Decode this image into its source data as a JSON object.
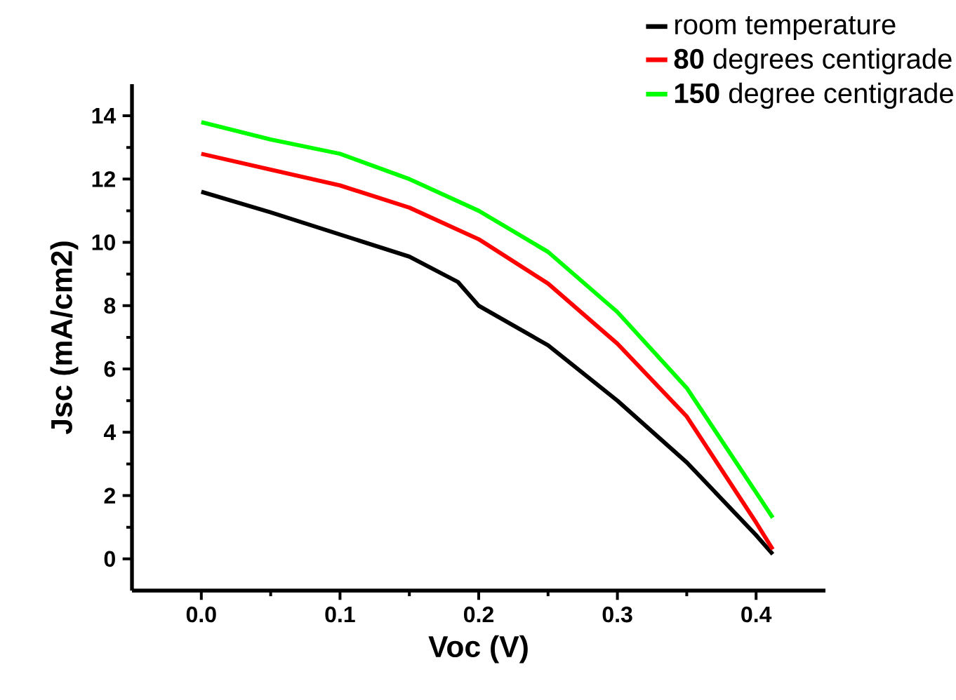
{
  "chart_data": {
    "type": "line",
    "xlabel": "Voc (V)",
    "ylabel": "Jsc (mA/cm2)",
    "xlim": [
      -0.05,
      0.45
    ],
    "ylim": [
      -1,
      15
    ],
    "xticks": [
      {
        "value": 0,
        "label": "0.0"
      },
      0.1,
      0.2,
      0.3,
      0.4
    ],
    "yticks": [
      0,
      2,
      4,
      6,
      8,
      10,
      12,
      14
    ],
    "grid": false,
    "legend": "top right",
    "marker": "none",
    "line_style": "solid",
    "series": [
      {
        "name": "room temperature",
        "color": "#000000",
        "x": [
          0,
          0.05,
          0.1,
          0.15,
          0.185,
          0.2,
          0.25,
          0.3,
          0.35,
          0.4,
          0.412
        ],
        "values": [
          11.6,
          10.95,
          10.25,
          9.55,
          8.75,
          8.0,
          6.75,
          5.0,
          3.05,
          0.75,
          0.15
        ]
      },
      {
        "name": "**80** degrees centigrade",
        "color": "#ff0000",
        "x": [
          0,
          0.05,
          0.1,
          0.15,
          0.2,
          0.25,
          0.3,
          0.35,
          0.4,
          0.412
        ],
        "values": [
          12.8,
          12.3,
          11.8,
          11.1,
          10.1,
          8.7,
          6.8,
          4.5,
          1.15,
          0.3
        ]
      },
      {
        "name": "**150** degree centigrade",
        "color": "#00ff00",
        "x": [
          0,
          0.05,
          0.1,
          0.15,
          0.2,
          0.25,
          0.3,
          0.35,
          0.4,
          0.412
        ],
        "values": [
          13.8,
          13.25,
          12.8,
          12.0,
          11.0,
          9.7,
          7.8,
          5.4,
          2.1,
          1.3
        ]
      }
    ]
  }
}
